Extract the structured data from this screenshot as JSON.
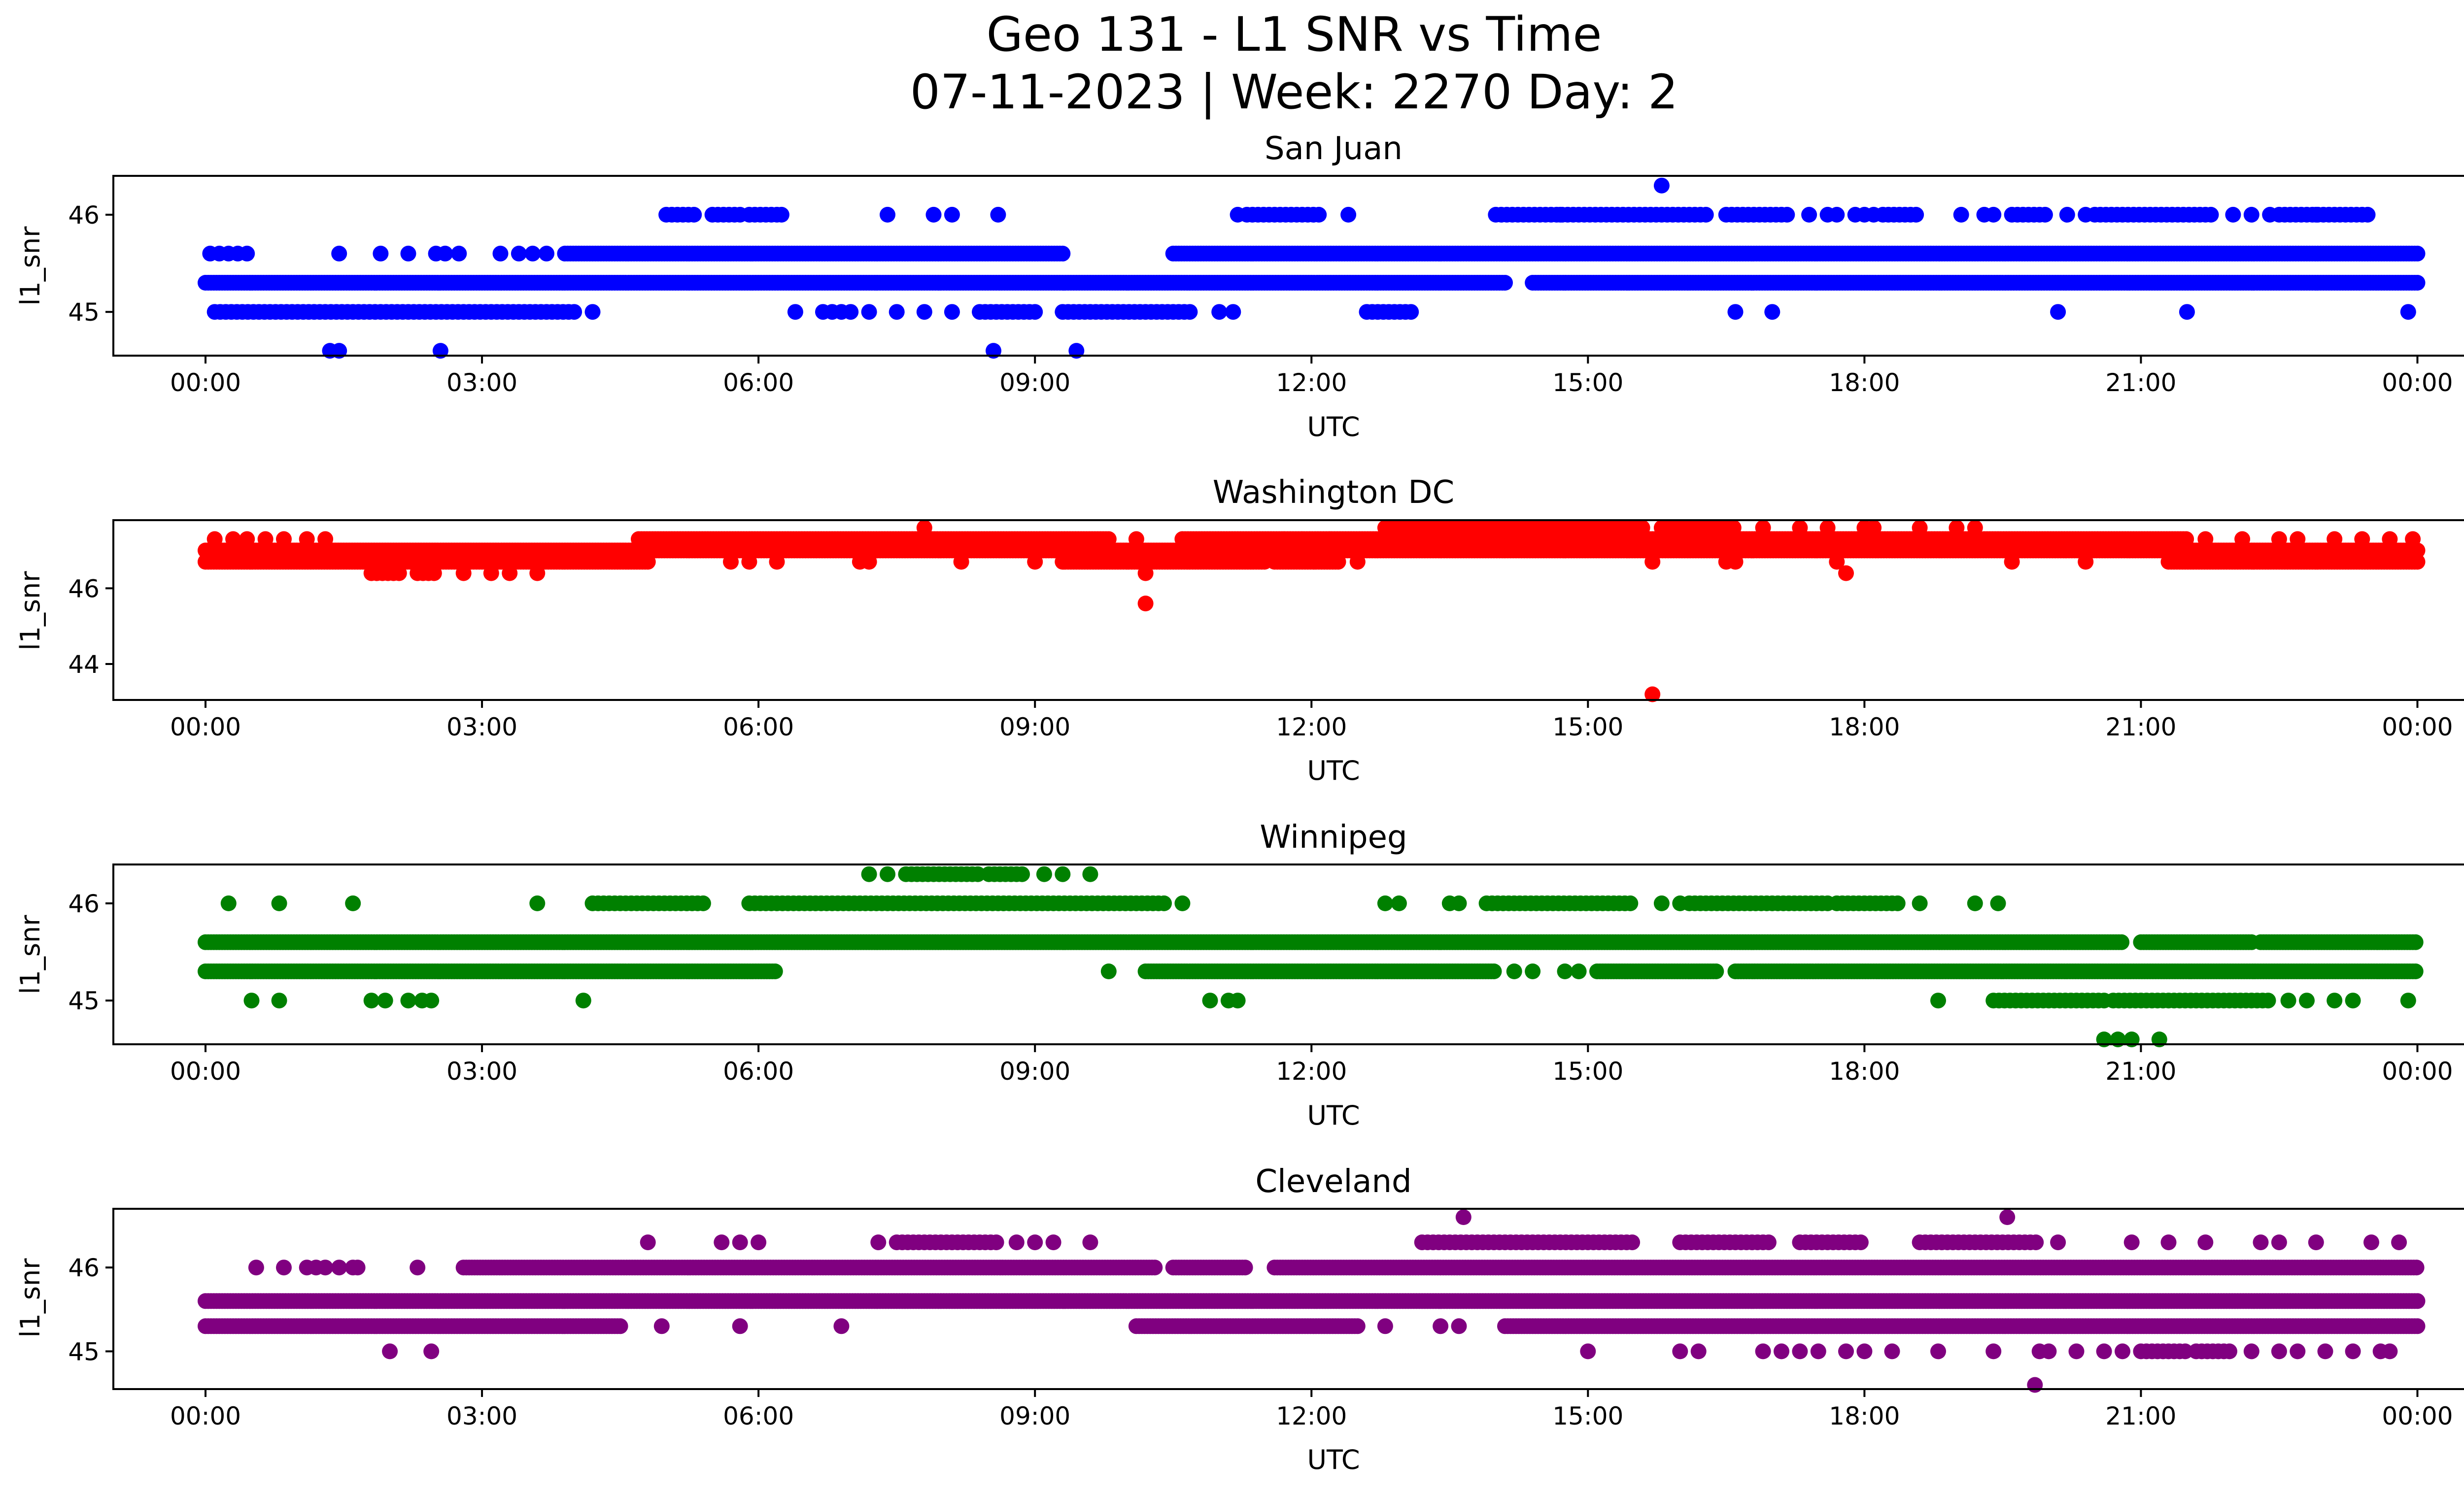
{
  "figure": {
    "title_line1": "Geo 131 - L1 SNR vs Time",
    "title_line2": "07-11-2023 | Week: 2270 Day: 2"
  },
  "chart_data": [
    {
      "type": "scatter",
      "title": "San Juan",
      "xlabel": "UTC",
      "ylabel": "l1_snr",
      "color": "#0000ff",
      "xlim_hours": [
        -1,
        25.5
      ],
      "ylim": [
        44.55,
        46.4
      ],
      "x_ticks": [
        "00:00",
        "03:00",
        "06:00",
        "09:00",
        "12:00",
        "15:00",
        "18:00",
        "21:00",
        "00:00"
      ],
      "y_ticks": [
        {
          "value": 45,
          "label": "45"
        },
        {
          "value": 46,
          "label": "46"
        }
      ],
      "bands": [
        {
          "y": 45.3,
          "ranges": [
            [
              0,
              14.1
            ],
            [
              14.4,
              24
            ]
          ]
        },
        {
          "y": 45.6,
          "ranges": [
            [
              3.9,
              9.3
            ],
            [
              10.5,
              24
            ]
          ]
        }
      ],
      "points": [
        {
          "y": 45.6,
          "x": [
            0.05,
            0.15,
            0.25,
            0.35,
            0.45,
            1.45,
            1.9,
            2.2,
            2.5,
            2.6,
            2.75,
            3.2,
            3.4,
            3.55,
            3.7
          ]
        },
        {
          "y": 45.0,
          "ranges": [
            [
              0.1,
              4.0
            ],
            [
              8.4,
              9.0
            ],
            [
              9.3,
              10.7
            ],
            [
              12.6,
              13.1
            ]
          ],
          "x": [
            4.2,
            6.4,
            6.7,
            6.8,
            6.9,
            7.0,
            7.2,
            7.5,
            7.8,
            8.1,
            11.0,
            11.15,
            16.6,
            17.0,
            20.1,
            21.5,
            23.9
          ]
        },
        {
          "y": 46.0,
          "ranges": [
            [
              5.0,
              5.3
            ],
            [
              5.5,
              5.8
            ],
            [
              5.9,
              6.2
            ],
            [
              11.3,
              12.1
            ],
            [
              14.0,
              16.3
            ],
            [
              16.5,
              17.2
            ],
            [
              18.2,
              18.6
            ],
            [
              19.6,
              20.0
            ],
            [
              20.5,
              21.8
            ],
            [
              22.5,
              23.5
            ]
          ],
          "x": [
            6.25,
            7.4,
            7.9,
            8.1,
            8.6,
            11.2,
            12.4,
            14.7,
            17.4,
            17.6,
            17.7,
            17.9,
            18.0,
            18.1,
            19.05,
            19.3,
            19.4,
            20.2,
            20.4,
            22.0,
            22.2,
            22.4,
            22.9
          ]
        },
        {
          "y": 44.6,
          "x": [
            1.35,
            1.45,
            2.55,
            8.55,
            9.45
          ]
        },
        {
          "y": 46.3,
          "x": [
            15.8
          ]
        }
      ]
    },
    {
      "type": "scatter",
      "title": "Washington DC",
      "xlabel": "UTC",
      "ylabel": "l1_snr",
      "color": "#ff0000",
      "xlim_hours": [
        -1,
        25.5
      ],
      "ylim": [
        43.05,
        47.8
      ],
      "x_ticks": [
        "00:00",
        "03:00",
        "06:00",
        "09:00",
        "12:00",
        "15:00",
        "18:00",
        "21:00",
        "00:00"
      ],
      "y_ticks": [
        {
          "value": 44,
          "label": "44"
        },
        {
          "value": 46,
          "label": "46"
        }
      ],
      "bands": [
        {
          "y": 47.0,
          "ranges": [
            [
              0,
              24
            ]
          ]
        },
        {
          "y": 46.7,
          "ranges": [
            [
              0,
              4.8
            ],
            [
              9.3,
              11.5
            ],
            [
              11.6,
              12.3
            ],
            [
              21.3,
              24
            ]
          ]
        },
        {
          "y": 47.3,
          "ranges": [
            [
              4.7,
              9.8
            ],
            [
              10.6,
              19.2
            ],
            [
              19.3,
              21.5
            ]
          ]
        },
        {
          "y": 47.6,
          "ranges": [
            [
              12.8,
              15.6
            ],
            [
              15.8,
              16.6
            ]
          ]
        }
      ],
      "points": [
        {
          "y": 47.3,
          "x": [
            0.1,
            0.3,
            0.45,
            0.65,
            0.85,
            1.1,
            1.3,
            10.1,
            10.6,
            11.7,
            11.9,
            12.2,
            21.7,
            22.1,
            22.5,
            22.7,
            23.1,
            23.4,
            23.7,
            23.95
          ]
        },
        {
          "y": 46.4,
          "ranges": [
            [
              1.8,
              2.1
            ],
            [
              2.3,
              2.5
            ]
          ],
          "x": [
            2.8,
            3.1,
            3.3,
            3.6,
            10.2,
            17.8
          ]
        },
        {
          "y": 46.7,
          "x": [
            5.7,
            5.9,
            6.2,
            7.1,
            7.2,
            8.2,
            9.0,
            12.5,
            15.7,
            16.5,
            16.6,
            17.7,
            19.6,
            20.4
          ]
        },
        {
          "y": 47.6,
          "x": [
            7.8,
            16.9,
            17.3,
            17.6,
            18.0,
            18.1,
            18.6,
            19.0,
            19.2
          ]
        },
        {
          "y": 45.6,
          "x": [
            10.2
          ]
        },
        {
          "y": 43.2,
          "x": [
            15.7
          ]
        }
      ]
    },
    {
      "type": "scatter",
      "title": "Winnipeg",
      "xlabel": "UTC",
      "ylabel": "l1_snr",
      "color": "#008000",
      "xlim_hours": [
        -1,
        25.5
      ],
      "ylim": [
        44.55,
        46.4
      ],
      "x_ticks": [
        "00:00",
        "03:00",
        "06:00",
        "09:00",
        "12:00",
        "15:00",
        "18:00",
        "21:00",
        "00:00"
      ],
      "y_ticks": [
        {
          "value": 45,
          "label": "45"
        },
        {
          "value": 46,
          "label": "46"
        }
      ],
      "bands": [
        {
          "y": 45.6,
          "ranges": [
            [
              0,
              20.8
            ],
            [
              21.0,
              22.2
            ],
            [
              22.3,
              24
            ]
          ]
        },
        {
          "y": 45.3,
          "ranges": [
            [
              0,
              6.2
            ],
            [
              10.2,
              14.0
            ],
            [
              15.1,
              16.4
            ],
            [
              16.6,
              24
            ]
          ]
        }
      ],
      "points": [
        {
          "y": 46.0,
          "ranges": [
            [
              4.2,
              5.4
            ],
            [
              5.9,
              10.4
            ],
            [
              13.9,
              15.5
            ],
            [
              16.1,
              17.6
            ],
            [
              17.7,
              18.4
            ]
          ],
          "x": [
            0.25,
            0.8,
            1.6,
            3.6,
            10.6,
            12.8,
            12.95,
            13.5,
            13.6,
            15.8,
            16.0,
            18.6,
            19.2,
            19.45
          ]
        },
        {
          "y": 46.3,
          "ranges": [
            [
              7.6,
              8.4
            ],
            [
              8.5,
              8.9
            ]
          ],
          "x": [
            7.2,
            7.4,
            9.1,
            9.3,
            9.6
          ]
        },
        {
          "y": 45.0,
          "ranges": [
            [
              19.4,
              20.6
            ],
            [
              20.7,
              22.4
            ]
          ],
          "x": [
            0.5,
            0.8,
            1.8,
            1.95,
            2.2,
            2.35,
            2.45,
            4.1,
            10.9,
            11.1,
            11.2,
            18.8,
            22.6,
            22.8,
            23.1,
            23.3,
            23.9
          ]
        },
        {
          "y": 45.3,
          "x": [
            9.8,
            14.2,
            14.4,
            14.75,
            14.9
          ]
        },
        {
          "y": 44.6,
          "x": [
            20.6,
            20.75,
            20.9,
            21.2
          ]
        }
      ]
    },
    {
      "type": "scatter",
      "title": "Cleveland",
      "xlabel": "UTC",
      "ylabel": "l1_snr",
      "color": "#800080",
      "xlim_hours": [
        -1,
        25.5
      ],
      "ylim": [
        44.55,
        46.7
      ],
      "x_ticks": [
        "00:00",
        "03:00",
        "06:00",
        "09:00",
        "12:00",
        "15:00",
        "18:00",
        "21:00",
        "00:00"
      ],
      "y_ticks": [
        {
          "value": 45,
          "label": "45"
        },
        {
          "value": 46,
          "label": "46"
        }
      ],
      "bands": [
        {
          "y": 45.6,
          "ranges": [
            [
              0,
              24
            ]
          ]
        },
        {
          "y": 45.3,
          "ranges": [
            [
              0,
              4.5
            ],
            [
              10.1,
              12.5
            ],
            [
              14.1,
              24
            ]
          ]
        },
        {
          "y": 46.0,
          "ranges": [
            [
              2.8,
              10.3
            ],
            [
              10.5,
              11.3
            ],
            [
              11.6,
              24
            ]
          ]
        }
      ],
      "points": [
        {
          "y": 46.0,
          "x": [
            0.55,
            0.85,
            1.1,
            1.2,
            1.3,
            1.45,
            1.6,
            1.65,
            2.3
          ]
        },
        {
          "y": 46.3,
          "ranges": [
            [
              7.5,
              8.6
            ],
            [
              13.2,
              15.5
            ],
            [
              16.0,
              17.0
            ],
            [
              17.3,
              18.0
            ],
            [
              18.6,
              19.9
            ]
          ],
          "x": [
            4.8,
            5.6,
            5.8,
            6.0,
            7.3,
            8.8,
            9.0,
            9.2,
            9.6,
            20.1,
            20.9,
            21.3,
            21.7,
            22.3,
            22.5,
            22.9,
            23.5,
            23.8
          ]
        },
        {
          "y": 46.6,
          "x": [
            13.65,
            19.55
          ]
        },
        {
          "y": 45.3,
          "x": [
            4.95,
            5.8,
            6.9,
            12.8,
            13.4,
            13.6
          ]
        },
        {
          "y": 45.0,
          "ranges": [
            [
              21.0,
              21.5
            ],
            [
              21.6,
              22.0
            ]
          ],
          "x": [
            2.0,
            2.45,
            15.0,
            16.0,
            16.2,
            16.9,
            17.1,
            17.3,
            17.5,
            17.8,
            18.0,
            18.3,
            18.8,
            19.4,
            19.9,
            20.0,
            20.3,
            20.6,
            20.8,
            22.2,
            22.5,
            22.7,
            23.0,
            23.3,
            23.6,
            23.7
          ]
        },
        {
          "y": 44.6,
          "x": [
            19.85
          ]
        }
      ]
    }
  ]
}
